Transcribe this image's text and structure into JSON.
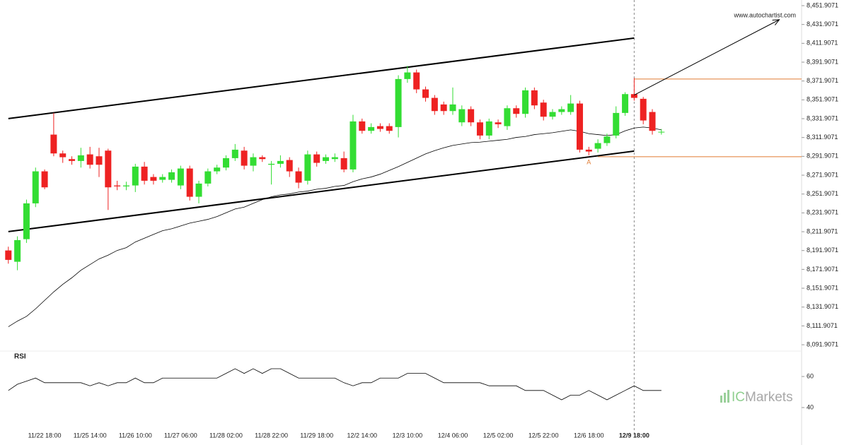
{
  "chart_data": [
    {
      "type": "candlestick",
      "watermark": "www.autochartist.com",
      "categories": [
        null,
        null,
        null,
        null,
        "11/22 18:00",
        null,
        null,
        null,
        null,
        "11/25 14:00",
        null,
        null,
        null,
        null,
        "11/26 10:00",
        null,
        null,
        null,
        null,
        "11/27 06:00",
        null,
        null,
        null,
        null,
        "11/28 02:00",
        null,
        null,
        null,
        null,
        "11/28 22:00",
        null,
        null,
        null,
        null,
        "11/29 18:00",
        null,
        null,
        null,
        null,
        "12/2 14:00",
        null,
        null,
        null,
        null,
        "12/3 10:00",
        null,
        null,
        null,
        null,
        "12/4 06:00",
        null,
        null,
        null,
        null,
        "12/5 02:00",
        null,
        null,
        null,
        null,
        "12/5 22:00",
        null,
        null,
        null,
        null,
        "12/6 18:00",
        null,
        null,
        null,
        null,
        "12/9 18:00",
        null,
        null,
        null
      ],
      "open": [
        8192,
        8180,
        8204,
        8242,
        8276,
        8315,
        8295,
        8289,
        8287,
        8294,
        8292,
        8298,
        8261,
        8260,
        8261,
        8281,
        8270,
        8267,
        8267,
        8261,
        8279,
        8249,
        8263,
        8276,
        8280,
        8290,
        8298,
        8282,
        8291,
        8283,
        8284,
        8288,
        8276,
        8266,
        8294,
        8287,
        8289,
        8290,
        8278,
        8329,
        8319,
        8324,
        8324,
        8323,
        8374,
        8381,
        8363,
        8354,
        8347,
        8340,
        8328,
        8342,
        8328,
        8314,
        8328,
        8324,
        8343,
        8337,
        8362,
        8349,
        8334,
        8339,
        8339,
        8348,
        8299,
        8300,
        8306,
        8314,
        8338,
        8358,
        8353,
        8339,
        8318
      ],
      "close": [
        8182,
        8203,
        8242,
        8276,
        8259,
        8295,
        8291,
        8287,
        8293,
        8283,
        8283,
        8259,
        8260,
        8261,
        8281,
        8266,
        8266,
        8270,
        8275,
        8279,
        8249,
        8263,
        8276,
        8280,
        8290,
        8299,
        8282,
        8291,
        8289,
        8284,
        8287,
        8276,
        8264,
        8294,
        8285,
        8291,
        8291,
        8278,
        8329,
        8319,
        8323,
        8321,
        8319,
        8374,
        8381,
        8363,
        8354,
        8340,
        8340,
        8347,
        8342,
        8328,
        8314,
        8329,
        8326,
        8343,
        8337,
        8362,
        8346,
        8334,
        8339,
        8342,
        8348,
        8299,
        8297,
        8306,
        8313,
        8338,
        8358,
        8354,
        8330,
        8319,
        8318
      ],
      "high": [
        8196,
        8207,
        8246,
        8280,
        8278,
        8338,
        8298,
        8292,
        8301,
        8302,
        8301,
        8300,
        8266,
        8265,
        8284,
        8286,
        8273,
        8273,
        8278,
        8282,
        8282,
        8266,
        8279,
        8283,
        8293,
        8305,
        8302,
        8295,
        8293,
        8287,
        8293,
        8291,
        8280,
        8298,
        8297,
        8294,
        8295,
        8297,
        8336,
        8332,
        8327,
        8327,
        8327,
        8378,
        8388,
        8384,
        8366,
        8357,
        8350,
        8365,
        8346,
        8345,
        8331,
        8332,
        8331,
        8346,
        8346,
        8365,
        8365,
        8352,
        8342,
        8345,
        8357,
        8351,
        8302,
        8310,
        8316,
        8345,
        8360,
        8375,
        8355,
        8342,
        8321
      ],
      "low": [
        8178,
        8171,
        8200,
        8238,
        8257,
        8292,
        8285,
        8283,
        8280,
        8279,
        8270,
        8235,
        8256,
        8256,
        8254,
        8262,
        8262,
        8264,
        8264,
        8257,
        8245,
        8242,
        8260,
        8273,
        8277,
        8287,
        8278,
        8276,
        8286,
        8262,
        8280,
        8270,
        8258,
        8262,
        8281,
        8284,
        8286,
        8275,
        8275,
        8316,
        8316,
        8318,
        8316,
        8312,
        8370,
        8359,
        8350,
        8336,
        8336,
        8336,
        8324,
        8324,
        8310,
        8310,
        8322,
        8320,
        8333,
        8333,
        8342,
        8330,
        8331,
        8336,
        8336,
        8296,
        8293,
        8296,
        8303,
        8311,
        8335,
        8351,
        8326,
        8315,
        8315
      ],
      "up_color": "#33dd33",
      "down_color": "#ee2222",
      "ma": {
        "color": "#000000",
        "values": [
          8111,
          8117,
          8122,
          8130,
          8139,
          8148,
          8156,
          8163,
          8171,
          8177,
          8183,
          8187,
          8192,
          8195,
          8201,
          8205,
          8209,
          8213,
          8215,
          8218,
          8221,
          8223,
          8225,
          8228,
          8232,
          8236,
          8238,
          8242,
          8246,
          8249,
          8251,
          8252,
          8254,
          8255,
          8257,
          8258,
          8260,
          8261,
          8265,
          8268,
          8270,
          8273,
          8277,
          8281,
          8285.5,
          8290,
          8294.5,
          8298,
          8301,
          8303.5,
          8305,
          8306.5,
          8307,
          8308,
          8309,
          8310,
          8312,
          8313,
          8315,
          8316,
          8317,
          8318.5,
          8320,
          8318.5,
          8316,
          8315,
          8314,
          8315,
          8319,
          8322,
          8323,
          8322,
          8320
        ]
      },
      "channel": {
        "start": 0,
        "end": 69,
        "upper": [
          8332,
          8417.5
        ],
        "lower": [
          8212,
          8297.5
        ]
      },
      "levels": [
        {
          "value": 8374,
          "start": 69,
          "color": "#e07a30"
        },
        {
          "value": 8291.5,
          "start": 65,
          "color": "#e07a30"
        }
      ],
      "forecast": {
        "from": [
          69,
          8357
        ],
        "to": [
          85,
          8437
        ]
      },
      "annotation": {
        "text": "A",
        "index": 64,
        "color": "#e07a30"
      },
      "ylim": [
        8086.7,
        8457.9
      ],
      "yticks": [
        {
          "value": 8451.9071,
          "label": "8,451.9071"
        },
        {
          "value": 8431.9071,
          "label": "8,431.9071"
        },
        {
          "value": 8411.9071,
          "label": "8,411.9071"
        },
        {
          "value": 8391.9071,
          "label": "8,391.9071"
        },
        {
          "value": 8371.9071,
          "label": "8,371.9071"
        },
        {
          "value": 8351.9071,
          "label": "8,351.9071"
        },
        {
          "value": 8331.9071,
          "label": "8,331.9071"
        },
        {
          "value": 8311.9071,
          "label": "8,311.9071"
        },
        {
          "value": 8291.9071,
          "label": "8,291.9071"
        },
        {
          "value": 8271.9071,
          "label": "8,271.9071"
        },
        {
          "value": 8251.9071,
          "label": "8,251.9071"
        },
        {
          "value": 8231.9071,
          "label": "8,231.9071"
        },
        {
          "value": 8211.9071,
          "label": "8,211.9071"
        },
        {
          "value": 8191.9071,
          "label": "8,191.9071"
        },
        {
          "value": 8171.9071,
          "label": "8,171.9071"
        },
        {
          "value": 8151.9071,
          "label": "8,151.9071"
        },
        {
          "value": 8131.9071,
          "label": "8,131.9071"
        },
        {
          "value": 8111.9071,
          "label": "8,111.9071"
        },
        {
          "value": 8091.9071,
          "label": "8,091.9071"
        }
      ]
    },
    {
      "type": "line",
      "title": "RSI",
      "color": "#000000",
      "values": [
        51,
        55,
        57,
        59,
        56,
        56,
        56,
        56,
        56,
        54,
        56,
        54,
        56,
        56,
        59,
        56,
        56,
        59,
        59,
        59,
        59,
        59,
        59,
        59,
        62,
        65,
        62,
        65,
        62,
        65,
        65,
        62,
        59,
        59,
        59,
        59,
        59,
        56,
        54,
        56,
        56,
        59,
        59,
        59,
        62,
        62,
        62,
        59,
        56,
        56,
        56,
        56,
        56,
        54,
        54,
        54,
        54,
        51,
        51,
        51,
        48,
        45,
        48,
        48,
        51,
        48,
        45,
        48,
        51,
        54,
        51,
        51,
        51
      ],
      "ylim": [
        22.7,
        77.3
      ],
      "yticks": [
        60,
        40
      ]
    }
  ],
  "brand": [
    "IC",
    "Markets"
  ]
}
